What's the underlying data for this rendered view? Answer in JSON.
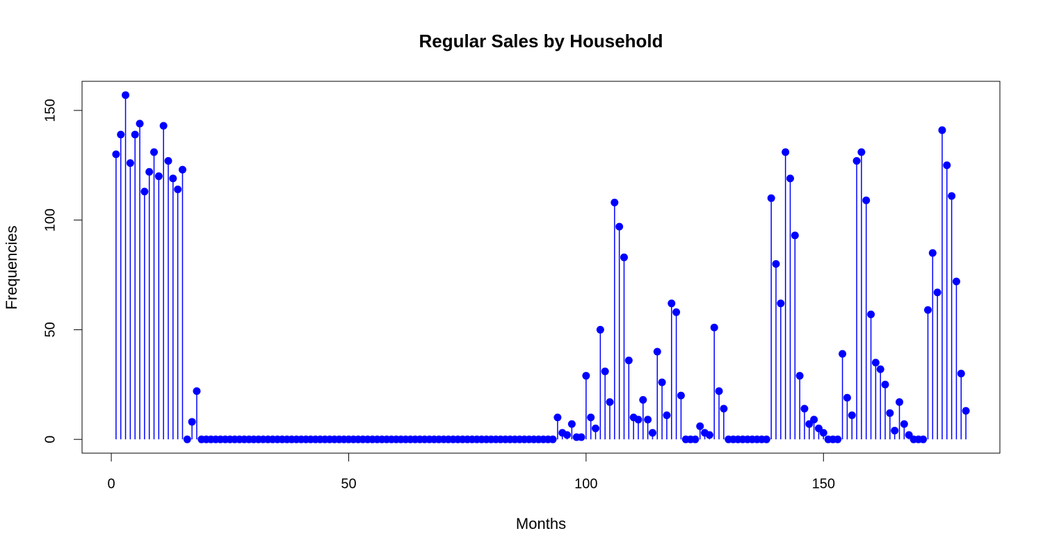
{
  "chart_data": {
    "type": "stem",
    "title": "Regular Sales by Household",
    "xlabel": "Months",
    "ylabel": "Frequencies",
    "color": "#0000ff",
    "x": [
      1,
      2,
      3,
      4,
      5,
      6,
      7,
      8,
      9,
      10,
      11,
      12,
      13,
      14,
      15,
      16,
      17,
      18,
      19,
      20,
      21,
      22,
      23,
      24,
      25,
      26,
      27,
      28,
      29,
      30,
      31,
      32,
      33,
      34,
      35,
      36,
      37,
      38,
      39,
      40,
      41,
      42,
      43,
      44,
      45,
      46,
      47,
      48,
      49,
      50,
      51,
      52,
      53,
      54,
      55,
      56,
      57,
      58,
      59,
      60,
      61,
      62,
      63,
      64,
      65,
      66,
      67,
      68,
      69,
      70,
      71,
      72,
      73,
      74,
      75,
      76,
      77,
      78,
      79,
      80,
      81,
      82,
      83,
      84,
      85,
      86,
      87,
      88,
      89,
      90,
      91,
      92,
      93,
      94,
      95,
      96,
      97,
      98,
      99,
      100,
      101,
      102,
      103,
      104,
      105,
      106,
      107,
      108,
      109,
      110,
      111,
      112,
      113,
      114,
      115,
      116,
      117,
      118,
      119,
      120,
      121,
      122,
      123,
      124,
      125,
      126,
      127,
      128,
      129,
      130,
      131,
      132,
      133,
      134,
      135,
      136,
      137,
      138,
      139,
      140,
      141,
      142,
      143,
      144,
      145,
      146,
      147,
      148,
      149,
      150,
      151,
      152,
      153,
      154,
      155,
      156,
      157,
      158,
      159,
      160,
      161,
      162,
      163,
      164,
      165,
      166,
      167,
      168,
      169,
      170,
      171,
      172,
      173,
      174,
      175,
      176,
      177,
      178,
      179,
      180
    ],
    "values": [
      130,
      139,
      157,
      126,
      139,
      144,
      113,
      122,
      131,
      120,
      143,
      127,
      119,
      114,
      123,
      0,
      8,
      22,
      0,
      0,
      0,
      0,
      0,
      0,
      0,
      0,
      0,
      0,
      0,
      0,
      0,
      0,
      0,
      0,
      0,
      0,
      0,
      0,
      0,
      0,
      0,
      0,
      0,
      0,
      0,
      0,
      0,
      0,
      0,
      0,
      0,
      0,
      0,
      0,
      0,
      0,
      0,
      0,
      0,
      0,
      0,
      0,
      0,
      0,
      0,
      0,
      0,
      0,
      0,
      0,
      0,
      0,
      0,
      0,
      0,
      0,
      0,
      0,
      0,
      0,
      0,
      0,
      0,
      0,
      0,
      0,
      0,
      0,
      0,
      0,
      0,
      0,
      0,
      10,
      3,
      2,
      7,
      1,
      1,
      29,
      10,
      5,
      50,
      31,
      17,
      108,
      97,
      83,
      36,
      10,
      9,
      18,
      9,
      3,
      40,
      26,
      11,
      62,
      58,
      20,
      0,
      0,
      0,
      6,
      3,
      2,
      51,
      22,
      14,
      0,
      0,
      0,
      0,
      0,
      0,
      0,
      0,
      0,
      110,
      80,
      62,
      131,
      119,
      93,
      29,
      14,
      7,
      9,
      5,
      3,
      0,
      0,
      0,
      39,
      19,
      11,
      127,
      131,
      109,
      57,
      35,
      32,
      25,
      12,
      4,
      17,
      7,
      2,
      0,
      0,
      0,
      59,
      85,
      67,
      141,
      125,
      111,
      72,
      30,
      13
    ],
    "xlim": [
      -6.16,
      187.16
    ],
    "ylim": [
      -6.28,
      163.28
    ],
    "xticks": [
      0,
      50,
      100,
      150
    ],
    "yticks": [
      0,
      50,
      100,
      150
    ]
  }
}
